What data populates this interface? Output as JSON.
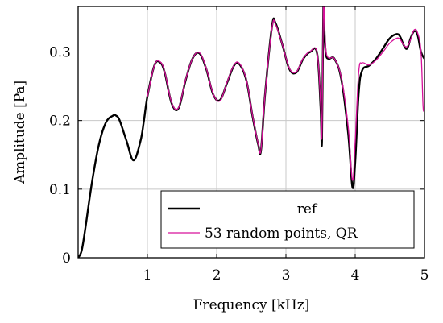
{
  "chart_data": {
    "type": "line",
    "xlabel": "Frequency [kHz]",
    "ylabel": "Amplitude [Pa]",
    "xlim": [
      0,
      5
    ],
    "ylim": [
      0,
      0.3
    ],
    "x_ticks": [
      1,
      2,
      3,
      4,
      5
    ],
    "x_tick_labels": [
      "1",
      "2",
      "3",
      "4",
      "5"
    ],
    "y_ticks": [
      0,
      0.1,
      0.2,
      0.3
    ],
    "y_tick_labels": [
      "0",
      "0.1",
      "0.2",
      "0.3"
    ],
    "grid": true,
    "legend_position": "bottom-right",
    "series": [
      {
        "name": "ref",
        "color": "#000000",
        "x": [
          0.0,
          0.05,
          0.1,
          0.2,
          0.3,
          0.4,
          0.5,
          0.55,
          0.6,
          0.7,
          0.8,
          0.9,
          0.95,
          1.0,
          1.1,
          1.18,
          1.25,
          1.35,
          1.45,
          1.55,
          1.65,
          1.75,
          1.85,
          1.95,
          2.05,
          2.15,
          2.25,
          2.33,
          2.43,
          2.52,
          2.6,
          2.64,
          2.7,
          2.8,
          2.85,
          2.95,
          3.05,
          3.15,
          3.25,
          3.35,
          3.45,
          3.5,
          3.52,
          3.54,
          3.56,
          3.58,
          3.62,
          3.7,
          3.8,
          3.9,
          3.96,
          4.0,
          4.05,
          4.1,
          4.2,
          4.3,
          4.4,
          4.5,
          4.6,
          4.65,
          4.7,
          4.75,
          4.8,
          4.85,
          4.9,
          4.95,
          5.0
        ],
        "y": [
          0.0,
          0.01,
          0.04,
          0.11,
          0.165,
          0.197,
          0.207,
          0.207,
          0.2,
          0.17,
          0.142,
          0.17,
          0.2,
          0.235,
          0.28,
          0.285,
          0.27,
          0.225,
          0.218,
          0.258,
          0.29,
          0.298,
          0.275,
          0.238,
          0.23,
          0.255,
          0.28,
          0.282,
          0.258,
          0.205,
          0.165,
          0.157,
          0.24,
          0.338,
          0.342,
          0.31,
          0.275,
          0.27,
          0.29,
          0.3,
          0.298,
          0.22,
          0.17,
          0.365,
          0.32,
          0.295,
          0.29,
          0.29,
          0.26,
          0.18,
          0.103,
          0.14,
          0.24,
          0.273,
          0.28,
          0.29,
          0.305,
          0.32,
          0.326,
          0.322,
          0.31,
          0.305,
          0.32,
          0.33,
          0.325,
          0.3,
          0.29
        ]
      },
      {
        "name": "53 random points, QR",
        "color": "#d6119a",
        "x": [
          1.0,
          1.1,
          1.18,
          1.25,
          1.35,
          1.45,
          1.55,
          1.65,
          1.75,
          1.85,
          1.95,
          2.05,
          2.15,
          2.25,
          2.33,
          2.43,
          2.52,
          2.6,
          2.64,
          2.7,
          2.8,
          2.85,
          2.95,
          3.05,
          3.15,
          3.25,
          3.35,
          3.45,
          3.5,
          3.52,
          3.54,
          3.56,
          3.58,
          3.62,
          3.7,
          3.8,
          3.9,
          3.96,
          4.0,
          4.05,
          4.1,
          4.2,
          4.3,
          4.4,
          4.5,
          4.6,
          4.65,
          4.7,
          4.75,
          4.8,
          4.85,
          4.9,
          4.95,
          4.98,
          5.0
        ],
        "y": [
          0.235,
          0.28,
          0.286,
          0.271,
          0.226,
          0.219,
          0.259,
          0.29,
          0.299,
          0.276,
          0.239,
          0.229,
          0.256,
          0.281,
          0.283,
          0.259,
          0.206,
          0.166,
          0.158,
          0.24,
          0.336,
          0.34,
          0.31,
          0.276,
          0.271,
          0.291,
          0.301,
          0.299,
          0.225,
          0.18,
          0.368,
          0.33,
          0.3,
          0.291,
          0.29,
          0.262,
          0.19,
          0.113,
          0.17,
          0.27,
          0.284,
          0.281,
          0.288,
          0.3,
          0.313,
          0.32,
          0.318,
          0.31,
          0.308,
          0.318,
          0.332,
          0.328,
          0.3,
          0.22,
          0.22
        ]
      }
    ]
  }
}
